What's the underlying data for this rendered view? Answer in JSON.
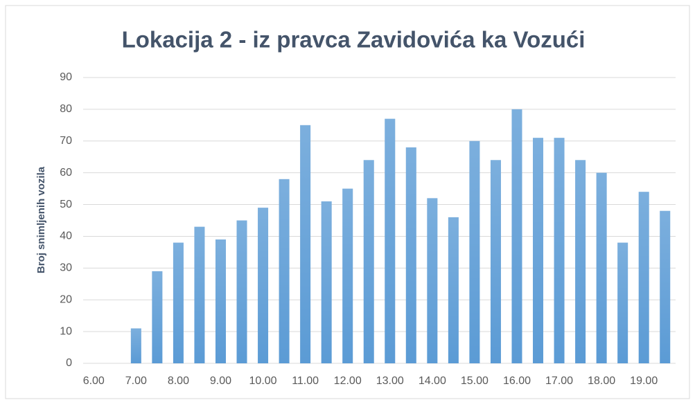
{
  "chart_data": {
    "type": "bar",
    "title": "Lokacija 2 - iz pravca Zavidovića ka Vozući",
    "y_label": "Broj snimljenih vozila",
    "categories": [
      "6.00",
      null,
      "7.00",
      null,
      "8.00",
      null,
      "9.00",
      null,
      "10.00",
      null,
      "11.00",
      null,
      "12.00",
      null,
      "13.00",
      null,
      "14.00",
      null,
      "15.00",
      null,
      "16.00",
      null,
      "17.00",
      null,
      "18.00",
      null,
      "19.00",
      null
    ],
    "values": [
      null,
      null,
      11,
      29,
      38,
      43,
      39,
      45,
      49,
      58,
      75,
      51,
      55,
      64,
      77,
      68,
      52,
      46,
      70,
      64,
      80,
      71,
      71,
      64,
      60,
      38,
      54,
      48
    ],
    "color": "#5b9bd5",
    "ylim": [
      0,
      90
    ],
    "yticks": [
      0,
      10,
      20,
      30,
      40,
      50,
      60,
      70,
      80,
      90
    ],
    "grid": true
  }
}
